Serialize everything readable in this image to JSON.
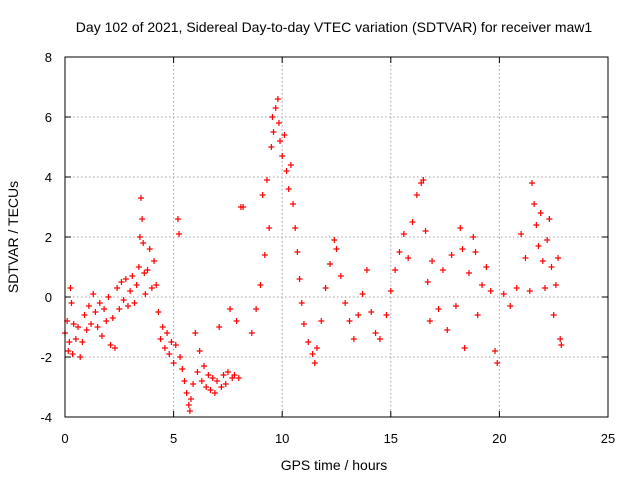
{
  "chart_data": {
    "type": "scatter",
    "title": "Day 102 of 2021, Sidereal Day-to-day VTEC variation (SDTVAR) for receiver maw1",
    "xlabel": "GPS time / hours",
    "ylabel": "SDTVAR / TECUs",
    "xlim": [
      0,
      25
    ],
    "ylim": [
      -4,
      8
    ],
    "xticks": [
      0,
      5,
      10,
      15,
      20,
      25
    ],
    "yticks": [
      -4,
      -2,
      0,
      2,
      4,
      6,
      8
    ],
    "xtick_labels": [
      "0",
      "5",
      "10",
      "15",
      "20",
      "25"
    ],
    "ytick_labels": [
      "-4",
      "-2",
      "0",
      "2",
      "4",
      "6",
      "8"
    ],
    "grid": true,
    "marker": "+",
    "color": "#ff0000",
    "series": [
      {
        "name": "maw1",
        "points": [
          [
            0.0,
            -1.2
          ],
          [
            0.1,
            -0.8
          ],
          [
            0.15,
            -1.8
          ],
          [
            0.2,
            -1.5
          ],
          [
            0.25,
            0.3
          ],
          [
            0.3,
            -0.2
          ],
          [
            0.35,
            -1.9
          ],
          [
            0.4,
            -0.9
          ],
          [
            0.5,
            -1.4
          ],
          [
            0.6,
            -1.0
          ],
          [
            0.7,
            -2.0
          ],
          [
            0.8,
            -1.5
          ],
          [
            0.9,
            -0.6
          ],
          [
            1.0,
            -1.1
          ],
          [
            1.1,
            -0.3
          ],
          [
            1.2,
            -0.9
          ],
          [
            1.3,
            0.1
          ],
          [
            1.4,
            -0.5
          ],
          [
            1.5,
            -1.0
          ],
          [
            1.6,
            -0.2
          ],
          [
            1.7,
            -1.3
          ],
          [
            1.8,
            -0.4
          ],
          [
            1.9,
            -0.8
          ],
          [
            2.0,
            0.0
          ],
          [
            2.1,
            -1.6
          ],
          [
            2.2,
            -0.7
          ],
          [
            2.3,
            -1.7
          ],
          [
            2.4,
            0.3
          ],
          [
            2.5,
            -0.4
          ],
          [
            2.6,
            0.5
          ],
          [
            2.7,
            -0.1
          ],
          [
            2.8,
            0.6
          ],
          [
            2.9,
            -0.3
          ],
          [
            3.0,
            0.2
          ],
          [
            3.1,
            0.7
          ],
          [
            3.2,
            -0.2
          ],
          [
            3.3,
            0.4
          ],
          [
            3.4,
            1.0
          ],
          [
            3.45,
            2.0
          ],
          [
            3.5,
            3.3
          ],
          [
            3.55,
            2.6
          ],
          [
            3.6,
            1.8
          ],
          [
            3.65,
            0.8
          ],
          [
            3.7,
            0.1
          ],
          [
            3.8,
            0.9
          ],
          [
            3.9,
            1.6
          ],
          [
            4.0,
            0.3
          ],
          [
            4.1,
            1.2
          ],
          [
            4.2,
            0.4
          ],
          [
            4.3,
            -0.5
          ],
          [
            4.4,
            -1.4
          ],
          [
            4.5,
            -1.0
          ],
          [
            4.6,
            -1.7
          ],
          [
            4.7,
            -1.2
          ],
          [
            4.8,
            -1.9
          ],
          [
            4.9,
            -1.5
          ],
          [
            5.0,
            -2.2
          ],
          [
            5.1,
            -1.6
          ],
          [
            5.2,
            2.6
          ],
          [
            5.25,
            2.1
          ],
          [
            5.3,
            -2.0
          ],
          [
            5.4,
            -2.4
          ],
          [
            5.5,
            -2.8
          ],
          [
            5.6,
            -3.2
          ],
          [
            5.7,
            -3.6
          ],
          [
            5.75,
            -3.8
          ],
          [
            5.8,
            -3.4
          ],
          [
            5.9,
            -2.9
          ],
          [
            6.0,
            -1.2
          ],
          [
            6.1,
            -2.5
          ],
          [
            6.2,
            -1.8
          ],
          [
            6.3,
            -2.8
          ],
          [
            6.4,
            -2.3
          ],
          [
            6.5,
            -3.0
          ],
          [
            6.6,
            -2.6
          ],
          [
            6.7,
            -3.1
          ],
          [
            6.8,
            -2.7
          ],
          [
            6.9,
            -3.2
          ],
          [
            7.0,
            -2.8
          ],
          [
            7.1,
            -1.0
          ],
          [
            7.2,
            -3.0
          ],
          [
            7.3,
            -2.6
          ],
          [
            7.4,
            -2.9
          ],
          [
            7.5,
            -2.5
          ],
          [
            7.6,
            -0.4
          ],
          [
            7.7,
            -2.7
          ],
          [
            7.8,
            -2.6
          ],
          [
            7.9,
            -0.8
          ],
          [
            8.0,
            -2.7
          ],
          [
            8.1,
            3.0
          ],
          [
            8.2,
            3.0
          ],
          [
            8.6,
            -1.2
          ],
          [
            8.8,
            -0.4
          ],
          [
            9.0,
            0.4
          ],
          [
            9.1,
            3.4
          ],
          [
            9.2,
            1.4
          ],
          [
            9.3,
            3.9
          ],
          [
            9.4,
            2.3
          ],
          [
            9.5,
            5.0
          ],
          [
            9.55,
            6.0
          ],
          [
            9.6,
            5.5
          ],
          [
            9.7,
            6.3
          ],
          [
            9.8,
            6.6
          ],
          [
            9.85,
            5.8
          ],
          [
            9.9,
            5.2
          ],
          [
            10.0,
            4.7
          ],
          [
            10.1,
            5.4
          ],
          [
            10.2,
            4.2
          ],
          [
            10.3,
            3.6
          ],
          [
            10.4,
            4.4
          ],
          [
            10.5,
            3.1
          ],
          [
            10.6,
            2.3
          ],
          [
            10.7,
            1.5
          ],
          [
            10.8,
            0.6
          ],
          [
            10.9,
            -0.2
          ],
          [
            11.0,
            -0.9
          ],
          [
            11.2,
            -1.5
          ],
          [
            11.4,
            -1.9
          ],
          [
            11.5,
            -2.2
          ],
          [
            11.6,
            -1.7
          ],
          [
            11.8,
            -0.8
          ],
          [
            12.0,
            0.3
          ],
          [
            12.2,
            1.1
          ],
          [
            12.4,
            1.9
          ],
          [
            12.5,
            1.6
          ],
          [
            12.7,
            0.7
          ],
          [
            12.9,
            -0.2
          ],
          [
            13.1,
            -0.8
          ],
          [
            13.3,
            -1.4
          ],
          [
            13.5,
            -0.6
          ],
          [
            13.7,
            0.1
          ],
          [
            13.9,
            0.9
          ],
          [
            14.1,
            -0.5
          ],
          [
            14.3,
            -1.2
          ],
          [
            14.5,
            -1.4
          ],
          [
            14.8,
            -0.6
          ],
          [
            15.0,
            0.2
          ],
          [
            15.2,
            0.9
          ],
          [
            15.4,
            1.5
          ],
          [
            15.6,
            2.1
          ],
          [
            15.8,
            1.3
          ],
          [
            16.0,
            2.5
          ],
          [
            16.2,
            3.4
          ],
          [
            16.4,
            3.8
          ],
          [
            16.5,
            3.9
          ],
          [
            16.6,
            2.2
          ],
          [
            16.7,
            0.5
          ],
          [
            16.8,
            -0.8
          ],
          [
            16.9,
            1.2
          ],
          [
            17.2,
            -0.4
          ],
          [
            17.4,
            0.9
          ],
          [
            17.6,
            -1.1
          ],
          [
            17.8,
            1.4
          ],
          [
            18.0,
            -0.3
          ],
          [
            18.2,
            2.3
          ],
          [
            18.3,
            1.6
          ],
          [
            18.4,
            -1.7
          ],
          [
            18.6,
            0.8
          ],
          [
            18.8,
            2.0
          ],
          [
            18.9,
            1.5
          ],
          [
            19.0,
            -0.6
          ],
          [
            19.2,
            0.4
          ],
          [
            19.4,
            1.0
          ],
          [
            19.6,
            0.2
          ],
          [
            19.8,
            -1.8
          ],
          [
            19.9,
            -2.2
          ],
          [
            20.2,
            0.1
          ],
          [
            20.5,
            -0.3
          ],
          [
            20.8,
            0.3
          ],
          [
            21.0,
            2.1
          ],
          [
            21.2,
            1.3
          ],
          [
            21.4,
            0.2
          ],
          [
            21.5,
            3.8
          ],
          [
            21.6,
            3.1
          ],
          [
            21.7,
            2.4
          ],
          [
            21.8,
            1.7
          ],
          [
            21.9,
            2.8
          ],
          [
            22.0,
            1.2
          ],
          [
            22.1,
            0.3
          ],
          [
            22.2,
            1.9
          ],
          [
            22.3,
            2.6
          ],
          [
            22.4,
            1.0
          ],
          [
            22.5,
            -0.6
          ],
          [
            22.6,
            0.4
          ],
          [
            22.7,
            1.3
          ],
          [
            22.8,
            -1.4
          ],
          [
            22.85,
            -1.6
          ]
        ]
      }
    ]
  }
}
